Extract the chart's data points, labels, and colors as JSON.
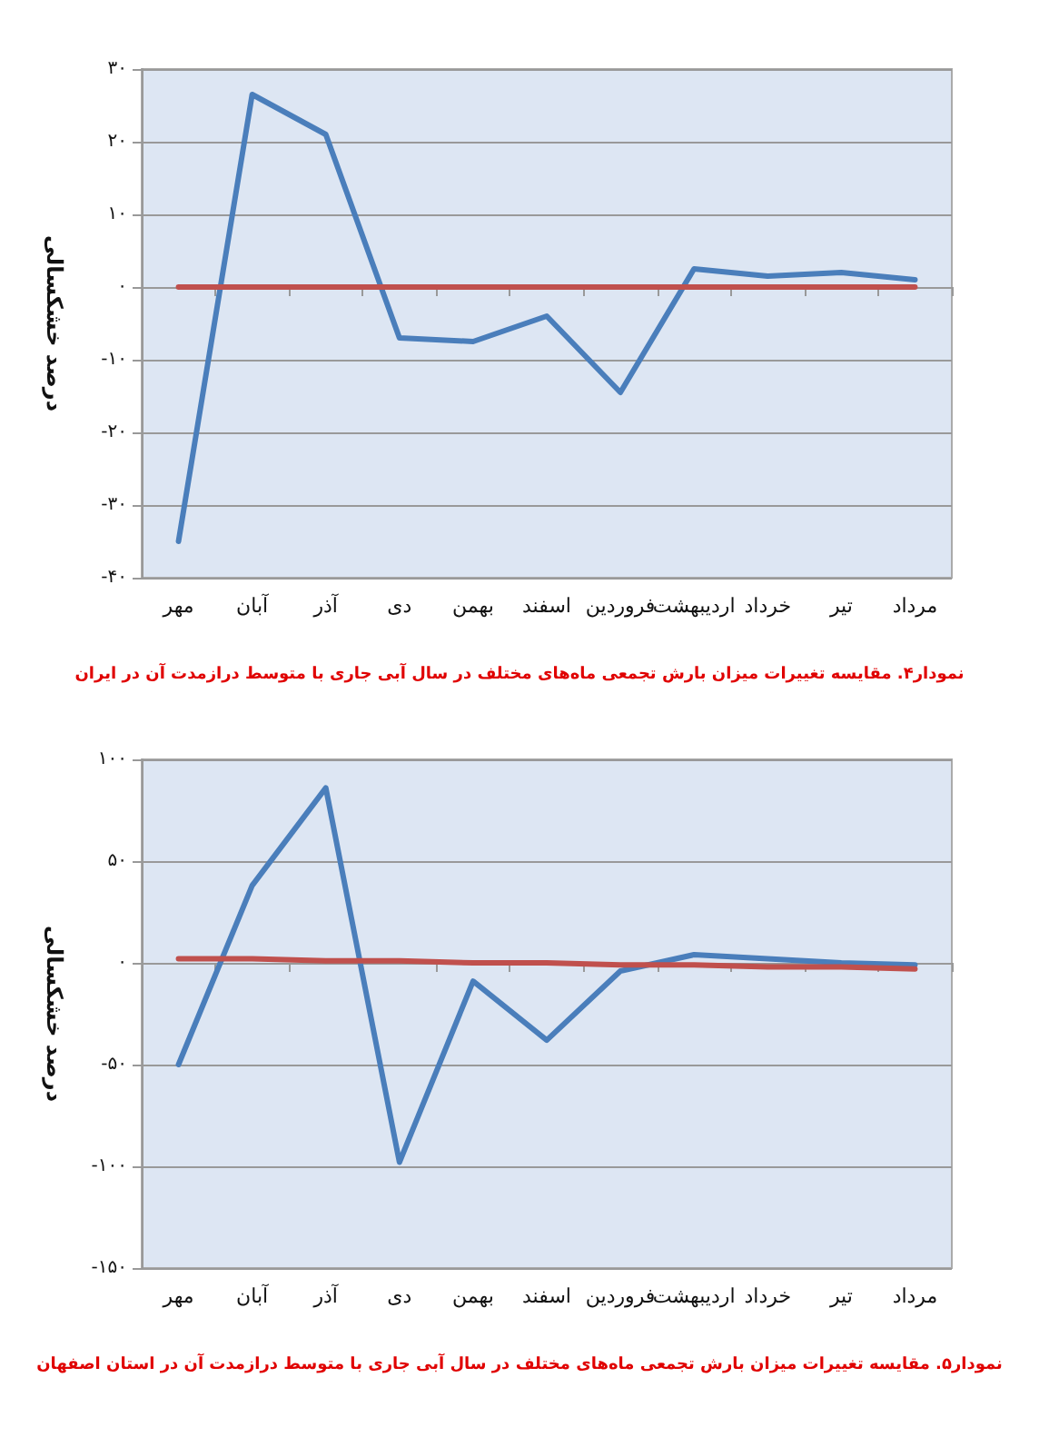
{
  "chart_data": [
    {
      "type": "line",
      "ylabel": "درصد خشکسالی",
      "categories": [
        "مهر",
        "آبان",
        "آذر",
        "دی",
        "بهمن",
        "اسفند",
        "فروردین",
        "اردیبهشت",
        "خرداد",
        "تیر",
        "مرداد"
      ],
      "series": [
        {
          "color": "#4a7ebb",
          "values": [
            -35,
            26.5,
            21,
            -7,
            -7.5,
            -4,
            -14.5,
            2.5,
            1.5,
            2,
            1
          ]
        },
        {
          "color": "#c0504d",
          "values": [
            0,
            0,
            0,
            0,
            0,
            0,
            0,
            0,
            0,
            0,
            0
          ]
        }
      ],
      "ylim": [
        -40,
        30
      ],
      "yticks": [
        {
          "value": -40,
          "label": "-۴۰"
        },
        {
          "value": -30,
          "label": "-۳۰"
        },
        {
          "value": -20,
          "label": "-۲۰"
        },
        {
          "value": -10,
          "label": "-۱۰"
        },
        {
          "value": 0,
          "label": "۰"
        },
        {
          "value": 10,
          "label": "۱۰"
        },
        {
          "value": 20,
          "label": "۲۰"
        },
        {
          "value": 30,
          "label": "۳۰"
        }
      ],
      "grid": "y",
      "marker": "none",
      "line_style": "solid",
      "annotations": [
        "نمودار۴. مقایسه تغییرات میزان بارش تجمعی ماه‌های مختلف در سال آبی جاری با متوسط درازمدت آن در ایران"
      ]
    },
    {
      "type": "line",
      "ylabel": "درصد خشکسالی",
      "categories": [
        "مهر",
        "آبان",
        "آذر",
        "دی",
        "بهمن",
        "اسفند",
        "فروردین",
        "اردیبهشت",
        "خرداد",
        "تیر",
        "مرداد"
      ],
      "series": [
        {
          "color": "#4a7ebb",
          "values": [
            -50,
            38,
            86,
            -98,
            -9,
            -38,
            -4,
            4,
            2,
            0,
            -1
          ]
        },
        {
          "color": "#c0504d",
          "values": [
            2,
            2,
            1,
            1,
            0,
            0,
            -1,
            -1,
            -2,
            -2,
            -3
          ]
        }
      ],
      "ylim": [
        -150,
        100
      ],
      "yticks": [
        {
          "value": -150,
          "label": "-۱۵۰"
        },
        {
          "value": -100,
          "label": "-۱۰۰"
        },
        {
          "value": -50,
          "label": "-۵۰"
        },
        {
          "value": 0,
          "label": "۰"
        },
        {
          "value": 50,
          "label": "۵۰"
        },
        {
          "value": 100,
          "label": "۱۰۰"
        }
      ],
      "grid": "y",
      "marker": "none",
      "line_style": "solid",
      "annotations": [
        "نمودار۵. مقایسه تغییرات میزان بارش تجمعی ماه‌های مختلف در سال آبی جاری با متوسط درازمدت آن در استان اصفهان"
      ]
    }
  ]
}
